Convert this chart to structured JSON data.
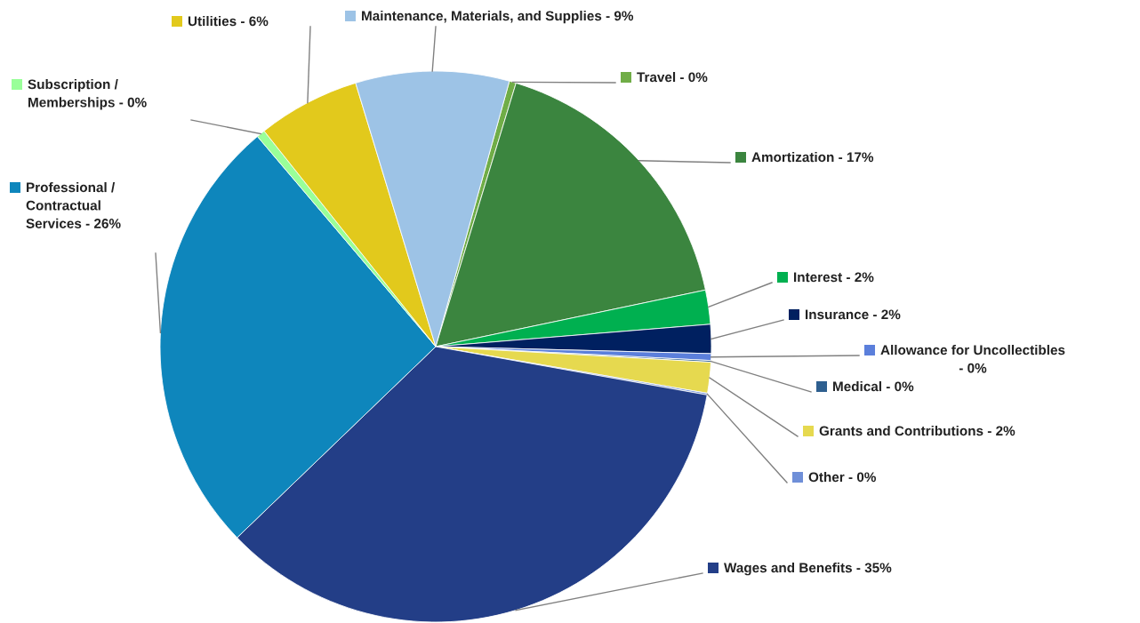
{
  "chart_data": {
    "type": "pie",
    "categories": [
      "Travel - 0%",
      "Amortization - 17%",
      "Interest - 2%",
      "Insurance - 2%",
      "Allowance for Uncollectibles\n- 0%",
      "Medical - 0%",
      "Grants and Contributions - 2%",
      "Other - 0%",
      "Wages and Benefits - 35%",
      "Professional /\nContractual\nServices - 26%",
      "Subscription /\nMemberships - 0%",
      "Utilities - 6%",
      "Maintenance, Materials, and Supplies - 9%"
    ],
    "values": [
      0.4,
      17,
      2,
      1.7,
      0.4,
      0.1,
      1.8,
      0.1,
      35,
      26,
      0.5,
      6,
      9
    ],
    "colors": [
      "#70ad47",
      "#3b853f",
      "#00b050",
      "#002060",
      "#5b7fdb",
      "#2e5f8f",
      "#e6d94f",
      "#6f8fd8",
      "#233e87",
      "#0e86bc",
      "#99ff99",
      "#e2c91c",
      "#9dc3e6"
    ],
    "legend": "right"
  }
}
